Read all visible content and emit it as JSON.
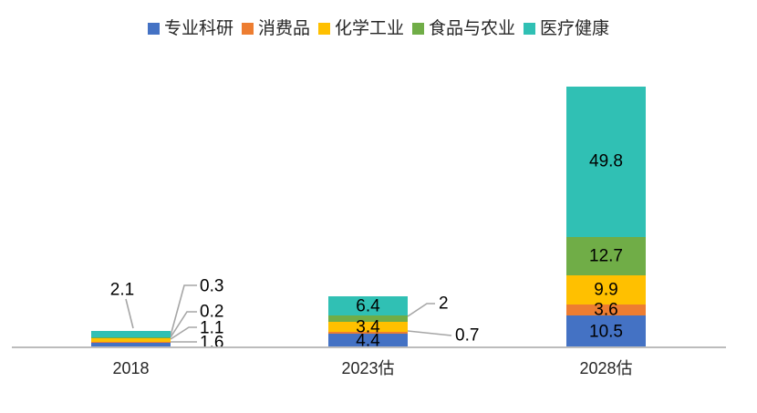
{
  "legend": {
    "items": [
      {
        "label": "专业科研",
        "color": "#4472C4"
      },
      {
        "label": "消费品",
        "color": "#ED7D31"
      },
      {
        "label": "化学工业",
        "color": "#FFC000"
      },
      {
        "label": "食品与农业",
        "color": "#70AD47"
      },
      {
        "label": "医疗健康",
        "color": "#30C0B4"
      }
    ]
  },
  "chart_data": {
    "type": "bar",
    "stacked": true,
    "title": "",
    "xlabel": "",
    "ylabel": "",
    "categories": [
      "2018",
      "2023估",
      "2028估"
    ],
    "series": [
      {
        "name": "专业科研",
        "color": "#4472C4",
        "values": [
          1.6,
          4.4,
          10.5
        ]
      },
      {
        "name": "消费品",
        "color": "#ED7D31",
        "values": [
          0.2,
          0.7,
          3.6
        ]
      },
      {
        "name": "化学工业",
        "color": "#FFC000",
        "values": [
          1.1,
          3.4,
          9.9
        ]
      },
      {
        "name": "食品与农业",
        "color": "#70AD47",
        "values": [
          0.3,
          2.0,
          12.7
        ]
      },
      {
        "name": "医疗健康",
        "color": "#30C0B4",
        "values": [
          2.1,
          6.4,
          49.8
        ]
      }
    ],
    "totals": [
      5.3,
      16.9,
      86.5
    ],
    "ylim": [
      0,
      90
    ],
    "grid": false,
    "legend_position": "top",
    "axis_color": "#BCBCBC",
    "leader_line_color": "#A6A6A6",
    "data_labels": [
      {
        "ci": 0,
        "si": 0,
        "text": "1.6",
        "placement": "callout"
      },
      {
        "ci": 0,
        "si": 1,
        "text": "0.2",
        "placement": "callout"
      },
      {
        "ci": 0,
        "si": 2,
        "text": "1.1",
        "placement": "callout"
      },
      {
        "ci": 0,
        "si": 3,
        "text": "0.3",
        "placement": "callout"
      },
      {
        "ci": 0,
        "si": 4,
        "text": "2.1",
        "placement": "callout"
      },
      {
        "ci": 1,
        "si": 0,
        "text": "4.4",
        "placement": "inside"
      },
      {
        "ci": 1,
        "si": 1,
        "text": "0.7",
        "placement": "callout"
      },
      {
        "ci": 1,
        "si": 2,
        "text": "3.4",
        "placement": "inside"
      },
      {
        "ci": 1,
        "si": 3,
        "text": "2",
        "placement": "callout"
      },
      {
        "ci": 1,
        "si": 4,
        "text": "6.4",
        "placement": "inside"
      },
      {
        "ci": 2,
        "si": 0,
        "text": "10.5",
        "placement": "inside"
      },
      {
        "ci": 2,
        "si": 1,
        "text": "3.6",
        "placement": "inside"
      },
      {
        "ci": 2,
        "si": 2,
        "text": "9.9",
        "placement": "inside"
      },
      {
        "ci": 2,
        "si": 3,
        "text": "12.7",
        "placement": "inside"
      },
      {
        "ci": 2,
        "si": 4,
        "text": "49.8",
        "placement": "inside"
      }
    ]
  },
  "x_axis": {
    "labels": [
      "2018",
      "2023估",
      "2028估"
    ]
  }
}
